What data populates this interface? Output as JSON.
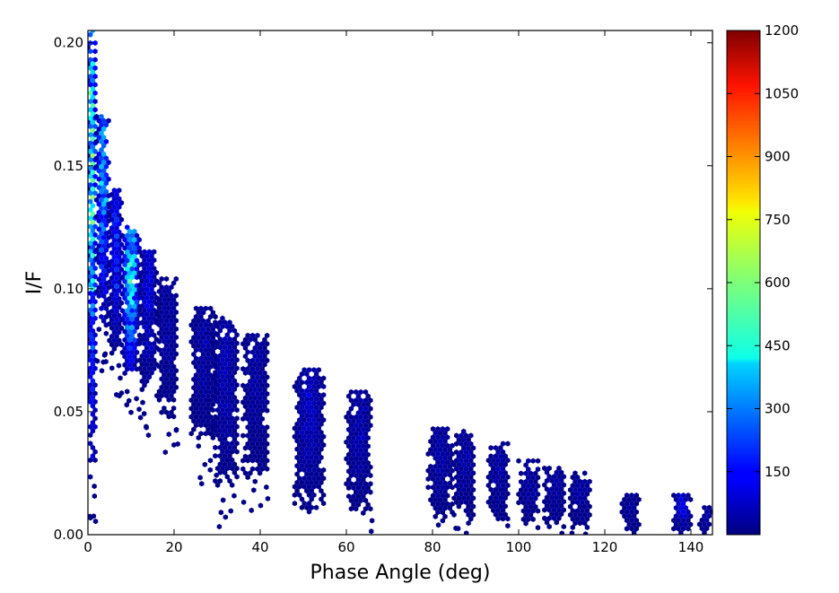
{
  "chart_data": {
    "type": "heatmap",
    "subtype": "hexbin",
    "title": "",
    "xlabel": "Phase Angle (deg)",
    "ylabel": "I/F",
    "xlim": [
      0,
      145
    ],
    "ylim": [
      0,
      0.205
    ],
    "x_ticks": [
      0,
      20,
      40,
      60,
      80,
      100,
      120,
      140
    ],
    "x_tick_labels": [
      "0",
      "20",
      "40",
      "60",
      "80",
      "100",
      "120",
      "140"
    ],
    "y_ticks": [
      0.0,
      0.05,
      0.1,
      0.15,
      0.2
    ],
    "y_tick_labels": [
      "0.00",
      "0.05",
      "0.10",
      "0.15",
      "0.20"
    ],
    "grid": false,
    "colormap": "jet",
    "colorbar": {
      "min": 0,
      "max": 1200,
      "ticks": [
        150,
        300,
        450,
        600,
        750,
        900,
        1050,
        1200
      ],
      "tick_labels": [
        "150",
        "300",
        "450",
        "600",
        "750",
        "900",
        "1050",
        "1200"
      ],
      "placement": "right"
    },
    "clusters": [
      {
        "phase_min": 0,
        "phase_max": 2,
        "if_min": 0.02,
        "if_max": 0.205,
        "peak_count": 700
      },
      {
        "phase_min": 2,
        "phase_max": 5,
        "if_min": 0.08,
        "if_max": 0.17,
        "peak_count": 500
      },
      {
        "phase_min": 5,
        "phase_max": 8,
        "if_min": 0.07,
        "if_max": 0.14,
        "peak_count": 250
      },
      {
        "phase_min": 8,
        "phase_max": 12,
        "if_min": 0.06,
        "if_max": 0.125,
        "peak_count": 650
      },
      {
        "phase_min": 12,
        "phase_max": 16,
        "if_min": 0.055,
        "if_max": 0.115,
        "peak_count": 150
      },
      {
        "phase_min": 16,
        "phase_max": 21,
        "if_min": 0.045,
        "if_max": 0.104,
        "peak_count": 60
      },
      {
        "phase_min": 24,
        "phase_max": 30,
        "if_min": 0.035,
        "if_max": 0.092,
        "peak_count": 60
      },
      {
        "phase_min": 29,
        "phase_max": 35,
        "if_min": 0.017,
        "if_max": 0.088,
        "peak_count": 80
      },
      {
        "phase_min": 36,
        "phase_max": 42,
        "if_min": 0.02,
        "if_max": 0.081,
        "peak_count": 60
      },
      {
        "phase_min": 48,
        "phase_max": 55,
        "if_min": 0.008,
        "if_max": 0.067,
        "peak_count": 100
      },
      {
        "phase_min": 60,
        "phase_max": 66,
        "if_min": 0.006,
        "if_max": 0.058,
        "peak_count": 70
      },
      {
        "phase_min": 79,
        "phase_max": 85,
        "if_min": 0.004,
        "if_max": 0.043,
        "peak_count": 60
      },
      {
        "phase_min": 85,
        "phase_max": 90,
        "if_min": 0.004,
        "if_max": 0.042,
        "peak_count": 60
      },
      {
        "phase_min": 93,
        "phase_max": 98,
        "if_min": 0.004,
        "if_max": 0.037,
        "peak_count": 60
      },
      {
        "phase_min": 100,
        "phase_max": 105,
        "if_min": 0.002,
        "if_max": 0.03,
        "peak_count": 50
      },
      {
        "phase_min": 106,
        "phase_max": 111,
        "if_min": 0.002,
        "if_max": 0.027,
        "peak_count": 50
      },
      {
        "phase_min": 112,
        "phase_max": 117,
        "if_min": 0.002,
        "if_max": 0.025,
        "peak_count": 60
      },
      {
        "phase_min": 124,
        "phase_max": 128,
        "if_min": 0.0,
        "if_max": 0.016,
        "peak_count": 40
      },
      {
        "phase_min": 136,
        "phase_max": 140,
        "if_min": 0.0,
        "if_max": 0.016,
        "peak_count": 150
      },
      {
        "phase_min": 142,
        "phase_max": 145,
        "if_min": 0.0,
        "if_max": 0.011,
        "peak_count": 60
      }
    ]
  }
}
